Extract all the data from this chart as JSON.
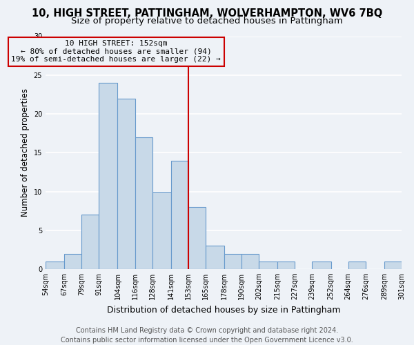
{
  "title": "10, HIGH STREET, PATTINGHAM, WOLVERHAMPTON, WV6 7BQ",
  "subtitle": "Size of property relative to detached houses in Pattingham",
  "xlabel": "Distribution of detached houses by size in Pattingham",
  "ylabel": "Number of detached properties",
  "bin_edges": [
    54,
    67,
    79,
    91,
    104,
    116,
    128,
    141,
    153,
    165,
    178,
    190,
    202,
    215,
    227,
    239,
    252,
    264,
    276,
    289,
    301
  ],
  "bin_labels": [
    "54sqm",
    "67sqm",
    "79sqm",
    "91sqm",
    "104sqm",
    "116sqm",
    "128sqm",
    "141sqm",
    "153sqm",
    "165sqm",
    "178sqm",
    "190sqm",
    "202sqm",
    "215sqm",
    "227sqm",
    "239sqm",
    "252sqm",
    "264sqm",
    "276sqm",
    "289sqm",
    "301sqm"
  ],
  "counts": [
    1,
    2,
    7,
    24,
    22,
    17,
    10,
    14,
    8,
    3,
    2,
    2,
    1,
    1,
    0,
    1,
    0,
    1,
    0,
    1
  ],
  "bar_color": "#c8d9e8",
  "bar_edge_color": "#6699cc",
  "vline_x": 153,
  "vline_color": "#cc0000",
  "annotation_line1": "10 HIGH STREET: 152sqm",
  "annotation_line2": "← 80% of detached houses are smaller (94)",
  "annotation_line3": "19% of semi-detached houses are larger (22) →",
  "annotation_box_color": "#cc0000",
  "ylim": [
    0,
    30
  ],
  "yticks": [
    0,
    5,
    10,
    15,
    20,
    25,
    30
  ],
  "footer_line1": "Contains HM Land Registry data © Crown copyright and database right 2024.",
  "footer_line2": "Contains public sector information licensed under the Open Government Licence v3.0.",
  "background_color": "#eef2f7",
  "grid_color": "#ffffff",
  "title_fontsize": 10.5,
  "subtitle_fontsize": 9.5,
  "xlabel_fontsize": 9,
  "ylabel_fontsize": 8.5,
  "tick_fontsize": 7,
  "annotation_fontsize": 8,
  "footer_fontsize": 7
}
